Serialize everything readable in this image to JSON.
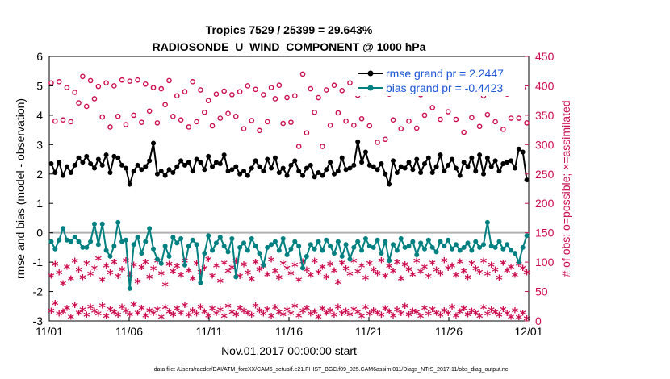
{
  "chart_data": {
    "type": "line",
    "title_line1": "Tropics 7529 / 25399 = 29.643%",
    "title_line2": "RADIOSONDE_U_WIND_COMPONENT @ 1000 hPa",
    "xlabel": "Nov.01,2017 00:00:00 start",
    "ylabel_left": "rmse and bias (model - observation)",
    "ylabel_right": "# of obs: o=possible; ×=assimilated",
    "xlim": [
      0,
      30
    ],
    "ylim_left": [
      -3,
      6
    ],
    "ylim_right": [
      0,
      450
    ],
    "x_ticks": [
      0,
      5,
      10,
      15,
      20,
      25,
      30
    ],
    "x_tick_labels": [
      "11/01",
      "11/06",
      "11/11",
      "11/16",
      "11/21",
      "11/26",
      "12/01"
    ],
    "y_ticks_left": [
      "-3",
      "-2",
      "-1",
      "0",
      "1",
      "2",
      "3",
      "4",
      "5",
      "6"
    ],
    "y_ticks_right": [
      "0",
      "50",
      "100",
      "150",
      "200",
      "250",
      "300",
      "350",
      "400",
      "450"
    ],
    "footnote": "data file: /Users/raeder/DAI/ATM_forcXX/CAM6_setup/f.e21.FHIST_BGC.f09_025.CAM6assim.011/Diags_NTrS_2017-11/obs_diag_output.nc",
    "colors": {
      "rmse": "#000000",
      "bias": "#008080",
      "obs": "#cc0d4f",
      "zero_line": "#b0b0b0",
      "legend_text": "#1a55d8"
    },
    "series": [
      {
        "name": "rmse grand pr = 2.2447",
        "values": [
          2.35,
          2.05,
          2.4,
          1.95,
          2.25,
          2.05,
          2.3,
          2.55,
          2.4,
          2.6,
          2.35,
          2.2,
          2.5,
          2.3,
          2.65,
          2.05,
          2.6,
          2.55,
          2.3,
          2.2,
          1.65,
          2.1,
          2.3,
          2.15,
          2.25,
          2.45,
          3.05,
          2.0,
          2.1,
          1.95,
          2.15,
          2.05,
          2.25,
          2.45,
          2.3,
          2.4,
          2.1,
          2.5,
          2.4,
          2.15,
          2.6,
          2.25,
          2.4,
          2.35,
          2.65,
          2.1,
          2.15,
          2.25,
          2.0,
          2.1,
          1.95,
          2.2,
          2.45,
          2.25,
          2.1,
          2.5,
          2.2,
          2.55,
          2.05,
          2.2,
          1.95,
          2.3,
          2.45,
          2.1,
          1.95,
          2.2,
          2.3,
          1.9,
          2.05,
          1.95,
          2.15,
          2.4,
          2.0,
          2.1,
          2.55,
          2.15,
          2.2,
          2.3,
          3.1,
          2.4,
          2.75,
          2.3,
          2.25,
          2.15,
          2.35,
          2.0,
          1.65,
          2.45,
          2.05,
          2.25,
          2.2,
          2.4,
          2.15,
          2.5,
          2.05,
          2.35,
          2.55,
          2.05,
          2.25,
          2.65,
          2.1,
          2.3,
          2.5,
          2.2,
          1.95,
          2.4,
          2.25,
          2.55,
          2.1,
          2.65,
          2.0,
          2.55,
          2.25,
          2.45,
          2.1,
          2.35,
          2.4,
          2.45,
          2.2,
          2.85,
          2.75,
          1.8
        ]
      },
      {
        "name": "bias grand pr = -0.4423",
        "values": [
          -0.3,
          -0.55,
          -0.25,
          0.15,
          -0.25,
          -0.3,
          -0.15,
          -0.3,
          -0.5,
          -0.5,
          -0.3,
          0.3,
          -0.4,
          0.3,
          -0.6,
          -0.8,
          -0.45,
          0.35,
          -0.3,
          -0.25,
          -1.9,
          -0.4,
          -0.15,
          -0.7,
          -0.3,
          0.15,
          -0.55,
          -0.9,
          -1.05,
          -0.45,
          -0.8,
          -0.15,
          -0.35,
          -0.2,
          -1.1,
          -0.45,
          -0.25,
          -0.4,
          -1.7,
          -0.7,
          -0.1,
          -0.6,
          -0.35,
          -0.15,
          -0.45,
          -0.65,
          -0.2,
          -1.5,
          -0.5,
          -0.35,
          -0.6,
          -0.2,
          -0.45,
          -0.7,
          -1.1,
          -0.5,
          -0.4,
          -0.3,
          -0.6,
          -0.2,
          -0.75,
          -0.55,
          -0.3,
          -0.45,
          -1.2,
          -0.8,
          -0.4,
          -0.55,
          -0.3,
          -0.6,
          -0.25,
          -0.45,
          -0.7,
          -0.3,
          -0.8,
          -0.4,
          -0.9,
          -0.5,
          -0.3,
          -0.6,
          -0.2,
          -0.45,
          -0.5,
          -0.25,
          -0.7,
          -0.3,
          -0.95,
          -0.4,
          -0.6,
          -0.2,
          -0.5,
          -0.45,
          -0.3,
          -0.75,
          -0.35,
          -0.55,
          -0.25,
          -0.5,
          -0.65,
          -0.3,
          -0.45,
          -0.25,
          -0.55,
          -0.4,
          -0.6,
          -0.5,
          -0.35,
          -0.6,
          -0.3,
          -0.5,
          -0.4,
          0.35,
          -0.45,
          -0.5,
          -0.3,
          -0.55,
          -0.4,
          -0.6,
          -0.7,
          -1.0,
          -0.5,
          -0.1
        ]
      },
      {
        "name": "obs possible",
        "axis": "right",
        "values": [
          405,
          340,
          407,
          342,
          397,
          339,
          389,
          371,
          416,
          365,
          409,
          378,
          399,
          347,
          405,
          330,
          400,
          348,
          410,
          334,
          408,
          350,
          410,
          338,
          403,
          357,
          397,
          337,
          395,
          368,
          409,
          348,
          383,
          342,
          390,
          330,
          407,
          339,
          393,
          355,
          375,
          332,
          386,
          345,
          391,
          353,
          385,
          348,
          390,
          327,
          400,
          341,
          394,
          324,
          385,
          339,
          397,
          378,
          401,
          336,
          380,
          338,
          383,
          297,
          420,
          320,
          395,
          355,
          380,
          297,
          393,
          333,
          401,
          354,
          392,
          340,
          405,
          333,
          384,
          344,
          387,
          332,
          390,
          304,
          391,
          309,
          386,
          342,
          403,
          327,
          389,
          340,
          400,
          328,
          385,
          350,
          402,
          363,
          396,
          343,
          401,
          356,
          391,
          343,
          390,
          321,
          392,
          346,
          398,
          331,
          383,
          351,
          392,
          339,
          402,
          326,
          386,
          345,
          399,
          345,
          396,
          337
        ]
      },
      {
        "name": "obs assimilated",
        "axis": "right",
        "values": [
          15,
          28,
          10,
          14,
          20,
          5,
          25,
          12,
          17,
          8,
          22,
          15,
          10,
          24,
          6,
          18,
          13,
          8,
          22,
          15,
          9,
          26,
          12,
          20,
          7,
          16,
          11,
          18,
          5,
          21,
          14,
          9,
          19,
          12,
          25,
          8,
          16,
          10,
          22,
          14,
          7,
          19,
          11,
          17,
          6,
          23,
          13,
          9,
          20,
          15,
          12,
          8,
          24,
          16,
          10,
          18,
          6,
          21,
          13,
          9,
          17,
          11,
          23,
          7,
          15,
          20,
          10,
          14,
          5,
          19,
          12,
          16,
          8,
          22,
          11,
          15,
          9,
          18,
          13,
          6,
          21,
          10,
          16,
          12,
          8,
          19,
          14,
          7,
          17,
          11,
          23,
          9,
          15,
          13,
          6,
          20,
          10,
          18,
          12,
          8,
          16,
          11,
          22,
          7,
          14,
          19,
          9,
          15,
          12,
          6,
          21,
          10,
          17,
          13,
          8,
          18,
          11,
          5,
          16,
          4,
          12,
          2
        ]
      },
      {
        "name": "obs assimilated (upper band)",
        "axis": "right",
        "values": [
          75,
          95,
          80,
          62,
          90,
          70,
          100,
          85,
          72,
          96,
          78,
          88,
          104,
          68,
          92,
          80,
          98,
          74,
          86,
          101,
          77,
          93,
          65,
          89,
          98,
          73,
          87,
          100,
          79,
          60,
          95,
          82,
          91,
          76,
          100,
          84,
          70,
          96,
          81,
          88,
          103,
          75,
          92,
          66,
          97,
          83,
          89,
          100,
          74,
          94,
          80,
          69,
          98,
          86,
          91,
          77,
          102,
          83,
          72,
          96,
          88,
          79,
          93,
          68,
          99,
          85,
          76,
          100,
          81,
          90,
          73,
          95,
          84,
          64,
          97,
          87,
          78,
          100,
          82,
          92,
          71,
          96,
          85,
          79,
          101,
          75,
          91,
          83,
          98,
          70,
          94,
          86,
          77,
          100,
          82,
          90,
          74,
          97,
          85,
          79,
          101,
          88,
          92,
          76,
          99,
          83,
          72,
          96,
          87,
          81,
          100,
          78,
          93,
          85,
          71,
          97,
          84,
          90,
          76,
          95,
          88,
          80
        ]
      }
    ]
  }
}
